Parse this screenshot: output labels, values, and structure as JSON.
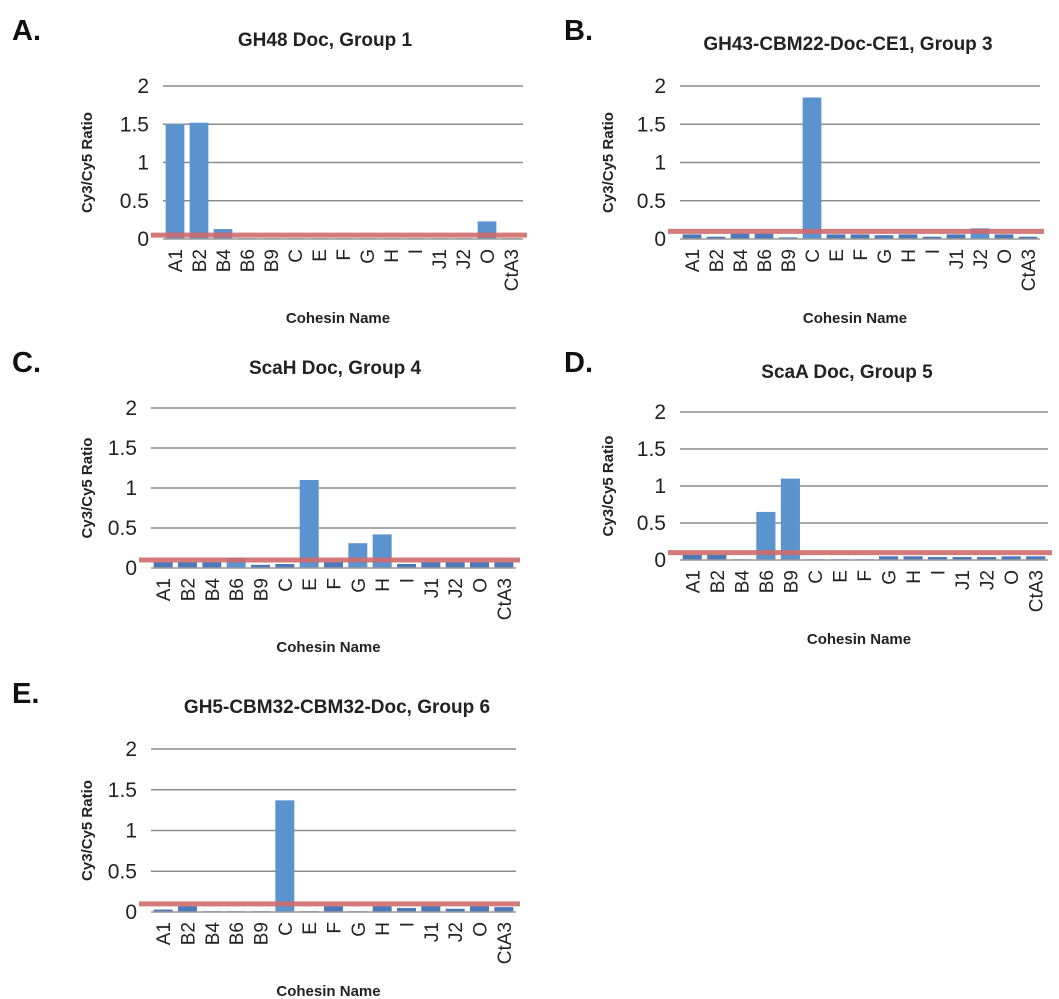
{
  "chart_data": [
    {
      "type": "bar",
      "panel": "A.",
      "title": "GH48 Doc, Group 1",
      "xlabel": "Cohesin Name",
      "ylabel": "Cy3/Cy5 Ratio",
      "ylim": [
        0,
        2
      ],
      "yticks": [
        "0",
        "0.5",
        "1",
        "1.5",
        "2"
      ],
      "categories": [
        "A1",
        "B2",
        "B4",
        "B6",
        "B9",
        "C",
        "E",
        "F",
        "G",
        "H",
        "I",
        "J1",
        "J2",
        "O",
        "CtA3"
      ],
      "values": [
        1.5,
        1.52,
        0.13,
        0.01,
        0.01,
        0.01,
        0.01,
        0.01,
        0.01,
        0.01,
        0.01,
        0.01,
        0.01,
        0.23,
        0.01
      ],
      "threshold": 0.05,
      "threshold_color": "#cf6b6b",
      "bar_color": "#5b93cf",
      "grid": true
    },
    {
      "type": "bar",
      "panel": "B.",
      "title": "GH43-CBM22-Doc-CE1, Group 3",
      "xlabel": "Cohesin Name",
      "ylabel": "Cy3/Cy5 Ratio",
      "ylim": [
        0,
        2
      ],
      "yticks": [
        "0",
        "0.5",
        "1",
        "1.5",
        "2"
      ],
      "categories": [
        "A1",
        "B2",
        "B4",
        "B6",
        "B9",
        "C",
        "E",
        "F",
        "G",
        "H",
        "I",
        "J1",
        "J2",
        "O",
        "CtA3"
      ],
      "values": [
        0.06,
        0.03,
        0.07,
        0.07,
        0.02,
        1.85,
        0.06,
        0.06,
        0.05,
        0.06,
        0.03,
        0.06,
        0.14,
        0.06,
        0.03
      ],
      "threshold": 0.1,
      "threshold_color": "#cf6b6b",
      "bar_color": "#5b93cf",
      "grid": true
    },
    {
      "type": "bar",
      "panel": "C.",
      "title": "ScaH Doc, Group 4",
      "xlabel": "Cohesin Name",
      "ylabel": "Cy3/Cy5 Ratio",
      "ylim": [
        0,
        2
      ],
      "yticks": [
        "0",
        "0.5",
        "1",
        "1.5",
        "2"
      ],
      "categories": [
        "A1",
        "B2",
        "B4",
        "B6",
        "B9",
        "C",
        "E",
        "F",
        "G",
        "H",
        "I",
        "J1",
        "J2",
        "O",
        "CtA3"
      ],
      "values": [
        0.07,
        0.07,
        0.07,
        0.13,
        0.04,
        0.05,
        1.1,
        0.07,
        0.31,
        0.42,
        0.05,
        0.07,
        0.07,
        0.07,
        0.07
      ],
      "threshold": 0.1,
      "threshold_color": "#cf6b6b",
      "bar_color": "#5b93cf",
      "grid": true
    },
    {
      "type": "bar",
      "panel": "D.",
      "title": "ScaA Doc, Group 5",
      "xlabel": "Cohesin Name",
      "ylabel": "Cy3/Cy5 Ratio",
      "ylim": [
        0,
        2
      ],
      "yticks": [
        "0",
        "0.5",
        "1",
        "1.5",
        "2"
      ],
      "categories": [
        "A1",
        "B2",
        "B4",
        "B6",
        "B9",
        "C",
        "E",
        "F",
        "G",
        "H",
        "I",
        "J1",
        "J2",
        "O",
        "CtA3"
      ],
      "values": [
        0.07,
        0.07,
        0.01,
        0.65,
        1.1,
        0.01,
        0.01,
        0.01,
        0.05,
        0.05,
        0.04,
        0.04,
        0.04,
        0.05,
        0.05
      ],
      "threshold": 0.1,
      "threshold_color": "#cf6b6b",
      "bar_color": "#5b93cf",
      "grid": true
    },
    {
      "type": "bar",
      "panel": "E.",
      "title": "GH5-CBM32-CBM32-Doc, Group 6",
      "xlabel": "Cohesin Name",
      "ylabel": "Cy3/Cy5 Ratio",
      "ylim": [
        0,
        2
      ],
      "yticks": [
        "0",
        "0.5",
        "1",
        "1.5",
        "2"
      ],
      "categories": [
        "A1",
        "B2",
        "B4",
        "B6",
        "B9",
        "C",
        "E",
        "F",
        "G",
        "H",
        "I",
        "J1",
        "J2",
        "O",
        "CtA3"
      ],
      "values": [
        0.03,
        0.07,
        0.01,
        0.01,
        0.01,
        1.37,
        0.01,
        0.07,
        0.01,
        0.07,
        0.05,
        0.07,
        0.04,
        0.07,
        0.06
      ],
      "threshold": 0.1,
      "threshold_color": "#cf6b6b",
      "bar_color": "#5b93cf",
      "grid": true
    }
  ]
}
